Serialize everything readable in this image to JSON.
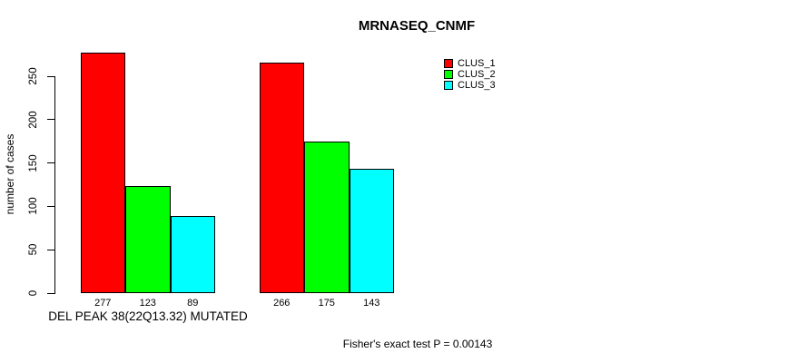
{
  "chart_data": {
    "type": "bar",
    "title": "MRNASEQ_CNMF",
    "ylabel": "number of cases",
    "xlabel": "DEL PEAK 38(22Q13.32) MUTATED",
    "footnote": "Fisher's exact test P = 0.00143",
    "yticks": [
      0,
      50,
      100,
      150,
      200,
      250
    ],
    "ylim": [
      0,
      277
    ],
    "grid": false,
    "legend": {
      "position": "top-right",
      "entries": [
        {
          "label": "CLUS_1",
          "color": "#ff0000"
        },
        {
          "label": "CLUS_2",
          "color": "#00ff00"
        },
        {
          "label": "CLUS_3",
          "color": "#00ffff"
        }
      ]
    },
    "series": [
      {
        "name": "CLUS_1",
        "color": "#ff0000",
        "values": [
          277,
          266
        ]
      },
      {
        "name": "CLUS_2",
        "color": "#00ff00",
        "values": [
          123,
          175
        ]
      },
      {
        "name": "CLUS_3",
        "color": "#00ffff",
        "values": [
          89,
          143
        ]
      }
    ],
    "bar_labels": [
      [
        "277",
        "123",
        "89"
      ],
      [
        "266",
        "175",
        "143"
      ]
    ]
  },
  "colors": {
    "background": "#ffffff",
    "axis": "#000000",
    "bar_border": "#000000",
    "text": "#000000"
  }
}
